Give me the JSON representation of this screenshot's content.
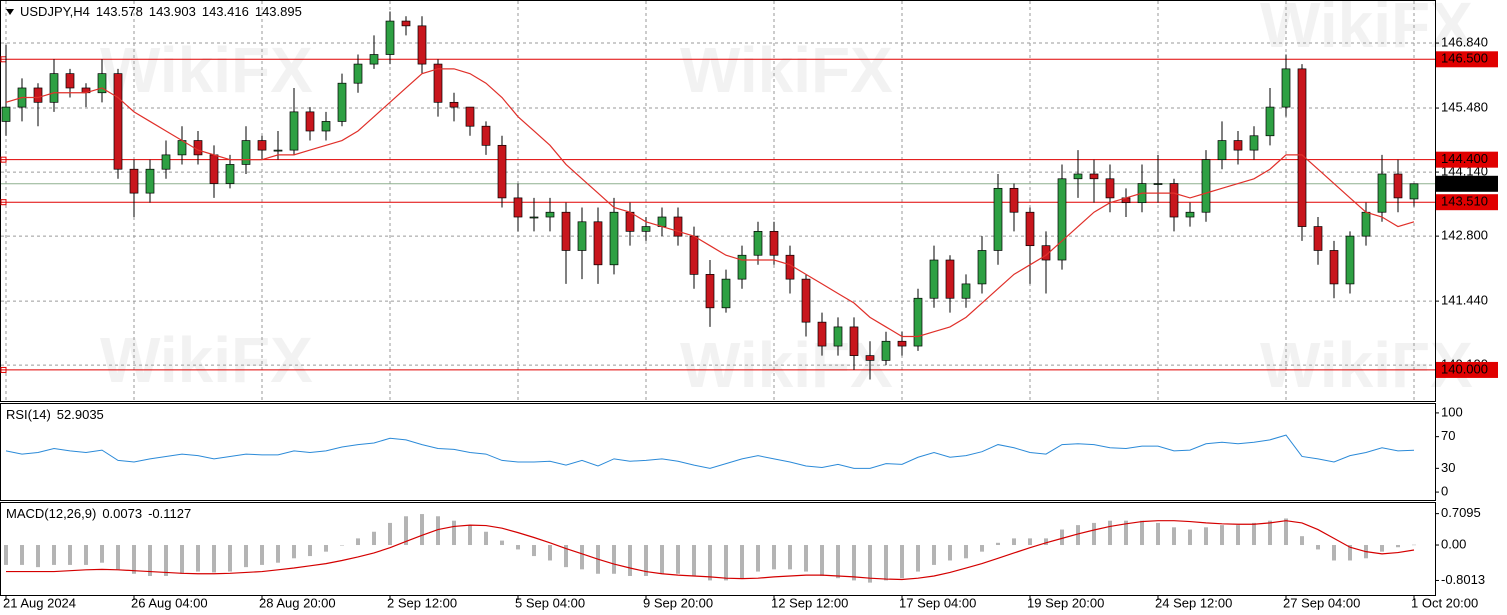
{
  "chart_data": [
    {
      "type": "candlestick",
      "title": "USDJPY,H4",
      "watermark": "WikiFX",
      "categories": [
        "21 Aug 2024",
        null,
        null,
        null,
        null,
        null,
        null,
        null,
        "26 Aug 04:00",
        null,
        null,
        null,
        null,
        null,
        null,
        null,
        "28 Aug 20:00",
        null,
        null,
        null,
        null,
        null,
        null,
        null,
        "2 Sep 12:00",
        null,
        null,
        null,
        null,
        null,
        null,
        null,
        "5 Sep 04:00",
        null,
        null,
        null,
        null,
        null,
        null,
        null,
        "9 Sep 20:00",
        null,
        null,
        null,
        null,
        null,
        null,
        null,
        "12 Sep 12:00",
        null,
        null,
        null,
        null,
        null,
        null,
        null,
        "17 Sep 04:00",
        null,
        null,
        null,
        null,
        null,
        null,
        null,
        "19 Sep 20:00",
        null,
        null,
        null,
        null,
        null,
        null,
        null,
        "24 Sep 12:00",
        null,
        null,
        null,
        null,
        null,
        null,
        null,
        "27 Sep 04:00",
        null,
        null,
        null,
        null,
        null,
        null,
        null,
        "1 Oct 20:00"
      ],
      "open": [
        145.2,
        145.5,
        145.9,
        145.6,
        146.2,
        145.9,
        145.8,
        146.2,
        144.2,
        143.7,
        144.2,
        144.5,
        144.8,
        144.5,
        143.9,
        144.3,
        144.8,
        144.6,
        144.6,
        145.4,
        145.0,
        145.2,
        146.0,
        146.4,
        146.6,
        147.3,
        147.2,
        146.4,
        145.6,
        145.5,
        145.1,
        144.7,
        143.6,
        143.2,
        143.2,
        143.3,
        142.5,
        143.1,
        142.2,
        143.3,
        142.9,
        143.0,
        143.2,
        142.8,
        142.0,
        141.3,
        141.9,
        142.4,
        142.9,
        142.4,
        141.9,
        141.0,
        140.5,
        140.9,
        140.3,
        140.2,
        140.6,
        140.5,
        141.5,
        142.3,
        141.5,
        141.8,
        142.5,
        143.8,
        143.3,
        142.6,
        142.3,
        144.0,
        144.1,
        144.0,
        143.6,
        143.5,
        143.9,
        143.9,
        143.2,
        143.3,
        144.4,
        144.8,
        144.6,
        144.9,
        145.5,
        146.3,
        143.0,
        142.5,
        141.8,
        142.8,
        143.3,
        144.1,
        143.578
      ],
      "high": [
        146.8,
        146.1,
        146.0,
        146.5,
        146.3,
        146.0,
        146.5,
        146.3,
        144.4,
        144.4,
        144.8,
        145.1,
        145.0,
        144.7,
        144.5,
        145.1,
        144.9,
        145.0,
        145.9,
        145.5,
        145.4,
        146.2,
        146.6,
        147.0,
        147.5,
        147.4,
        147.4,
        146.5,
        145.8,
        145.5,
        145.2,
        144.9,
        143.9,
        143.6,
        143.6,
        143.5,
        143.4,
        143.4,
        143.6,
        143.5,
        143.2,
        143.4,
        143.4,
        143.0,
        142.3,
        142.1,
        142.6,
        143.1,
        143.1,
        142.6,
        142.0,
        141.2,
        141.1,
        141.1,
        140.6,
        140.8,
        140.8,
        141.7,
        142.6,
        142.4,
        142.0,
        142.8,
        144.1,
        143.9,
        143.4,
        142.9,
        144.3,
        144.6,
        144.4,
        144.3,
        143.8,
        144.3,
        144.5,
        144.0,
        143.5,
        144.6,
        145.2,
        145.0,
        145.1,
        145.9,
        146.6,
        146.4,
        143.2,
        142.7,
        142.9,
        143.5,
        144.5,
        144.4,
        143.903
      ],
      "low": [
        144.9,
        145.2,
        145.1,
        145.4,
        145.7,
        145.5,
        145.6,
        144.0,
        143.2,
        143.5,
        144.0,
        144.3,
        144.3,
        143.6,
        143.8,
        144.1,
        144.4,
        144.4,
        144.5,
        144.8,
        144.8,
        145.1,
        145.8,
        146.3,
        146.4,
        147.0,
        146.2,
        145.3,
        145.2,
        144.9,
        144.5,
        143.4,
        142.9,
        142.9,
        142.9,
        141.8,
        141.9,
        141.8,
        142.0,
        142.6,
        142.7,
        142.8,
        142.6,
        141.7,
        140.9,
        141.2,
        141.7,
        142.2,
        142.2,
        141.6,
        140.7,
        140.3,
        140.3,
        140.0,
        139.8,
        140.1,
        140.3,
        140.4,
        141.3,
        141.2,
        141.3,
        141.6,
        142.2,
        142.9,
        141.8,
        141.6,
        142.1,
        143.6,
        143.5,
        143.3,
        143.2,
        143.3,
        143.5,
        142.9,
        143.0,
        143.1,
        144.2,
        144.3,
        144.4,
        144.7,
        145.3,
        142.7,
        142.2,
        141.5,
        141.6,
        142.6,
        143.1,
        143.3,
        143.416
      ],
      "close": [
        145.5,
        145.9,
        145.6,
        146.2,
        145.9,
        145.8,
        146.2,
        144.2,
        143.7,
        144.2,
        144.5,
        144.8,
        144.5,
        143.9,
        144.3,
        144.8,
        144.6,
        144.6,
        145.4,
        145.0,
        145.2,
        146.0,
        146.4,
        146.6,
        147.3,
        147.2,
        146.4,
        145.6,
        145.5,
        145.1,
        144.7,
        143.6,
        143.2,
        143.2,
        143.3,
        142.5,
        143.1,
        142.2,
        143.3,
        142.9,
        143.0,
        143.2,
        142.8,
        142.0,
        141.3,
        141.9,
        142.4,
        142.9,
        142.4,
        141.9,
        141.0,
        140.5,
        140.9,
        140.3,
        140.2,
        140.6,
        140.5,
        141.5,
        142.3,
        141.5,
        141.8,
        142.5,
        143.8,
        143.3,
        142.6,
        142.3,
        144.0,
        144.1,
        144.0,
        143.6,
        143.5,
        143.9,
        143.9,
        143.2,
        143.3,
        144.4,
        144.8,
        144.6,
        144.9,
        145.5,
        146.3,
        143.0,
        142.5,
        141.8,
        142.8,
        143.3,
        144.1,
        143.6,
        143.895
      ],
      "ma": [
        145.6,
        145.7,
        145.7,
        145.8,
        145.8,
        145.8,
        145.9,
        145.7,
        145.4,
        145.2,
        145.0,
        144.8,
        144.6,
        144.5,
        144.4,
        144.4,
        144.4,
        144.5,
        144.5,
        144.6,
        144.7,
        144.8,
        145.0,
        145.3,
        145.6,
        145.9,
        146.2,
        146.3,
        146.3,
        146.2,
        146.0,
        145.7,
        145.3,
        145.0,
        144.7,
        144.3,
        144.0,
        143.7,
        143.4,
        143.3,
        143.1,
        143.0,
        142.9,
        142.8,
        142.6,
        142.4,
        142.3,
        142.3,
        142.3,
        142.2,
        142.0,
        141.8,
        141.6,
        141.4,
        141.1,
        140.9,
        140.7,
        140.7,
        140.8,
        140.9,
        141.1,
        141.4,
        141.7,
        142.0,
        142.2,
        142.4,
        142.7,
        143.0,
        143.3,
        143.5,
        143.6,
        143.7,
        143.7,
        143.7,
        143.6,
        143.7,
        143.8,
        143.9,
        144.0,
        144.2,
        144.5,
        144.5,
        144.2,
        143.9,
        143.6,
        143.3,
        143.2,
        143.0,
        143.1
      ],
      "up_color": "#2ea043",
      "down_color": "#c8161d",
      "ma_color": "#e0302a",
      "ylim": [
        139.35,
        147.72
      ],
      "yticks": [
        {
          "value": 146.84,
          "label": "146.840"
        },
        {
          "value": 145.48,
          "label": "145.480"
        },
        {
          "value": 144.14,
          "label": "144.140"
        },
        {
          "value": 142.8,
          "label": "142.800"
        },
        {
          "value": 141.44,
          "label": "141.440"
        },
        {
          "value": 140.1,
          "label": "140.100"
        }
      ],
      "levels": [
        {
          "value": 146.5,
          "label": "146.500"
        },
        {
          "value": 144.4,
          "label": "144.400"
        },
        {
          "value": 143.51,
          "label": "143.510"
        },
        {
          "value": 140.0,
          "label": "140.000"
        }
      ],
      "level_color": "#e00000",
      "grid": true
    },
    {
      "type": "line",
      "title": "RSI(14)",
      "color": "#2b8ad8",
      "ylim": [
        -10,
        110
      ],
      "yticks": [
        100,
        70,
        30,
        0
      ],
      "values": [
        52,
        48,
        50,
        55,
        52,
        50,
        53,
        40,
        38,
        42,
        45,
        48,
        46,
        42,
        45,
        48,
        47,
        47,
        52,
        50,
        52,
        57,
        60,
        62,
        68,
        66,
        60,
        55,
        54,
        50,
        48,
        40,
        38,
        38,
        39,
        34,
        40,
        33,
        42,
        39,
        40,
        42,
        39,
        34,
        30,
        36,
        42,
        46,
        42,
        38,
        33,
        31,
        35,
        30,
        30,
        36,
        35,
        44,
        50,
        44,
        46,
        51,
        60,
        56,
        50,
        48,
        60,
        61,
        60,
        56,
        55,
        58,
        58,
        52,
        53,
        61,
        63,
        61,
        63,
        66,
        72,
        45,
        42,
        38,
        46,
        50,
        56,
        52,
        52.9035
      ]
    },
    {
      "type": "macd",
      "title": "MACD(12,26,9)",
      "hist_color": "#b4b4b4",
      "signal_color": "#d40000",
      "ylim": [
        -1.13,
        0.95
      ],
      "yticks": [
        0.7095,
        {
          "value": 0,
          "label": "0.00"
        },
        -0.8013
      ],
      "histogram": [
        -0.45,
        -0.45,
        -0.5,
        -0.45,
        -0.45,
        -0.45,
        -0.4,
        -0.55,
        -0.65,
        -0.7,
        -0.7,
        -0.65,
        -0.6,
        -0.62,
        -0.6,
        -0.5,
        -0.45,
        -0.4,
        -0.3,
        -0.25,
        -0.15,
        0.0,
        0.15,
        0.3,
        0.5,
        0.65,
        0.7,
        0.65,
        0.55,
        0.45,
        0.3,
        0.1,
        -0.1,
        -0.25,
        -0.35,
        -0.5,
        -0.55,
        -0.65,
        -0.65,
        -0.7,
        -0.7,
        -0.65,
        -0.65,
        -0.7,
        -0.8,
        -0.8,
        -0.75,
        -0.6,
        -0.55,
        -0.55,
        -0.6,
        -0.7,
        -0.75,
        -0.8,
        -0.85,
        -0.8,
        -0.75,
        -0.6,
        -0.45,
        -0.35,
        -0.3,
        -0.15,
        0.05,
        0.15,
        0.15,
        0.15,
        0.35,
        0.45,
        0.5,
        0.55,
        0.55,
        0.55,
        0.5,
        0.4,
        0.35,
        0.4,
        0.45,
        0.45,
        0.5,
        0.55,
        0.6,
        0.2,
        -0.1,
        -0.35,
        -0.35,
        -0.3,
        -0.15,
        -0.05,
        0.0073
      ],
      "signal": [
        -0.6,
        -0.6,
        -0.6,
        -0.6,
        -0.58,
        -0.56,
        -0.55,
        -0.56,
        -0.58,
        -0.6,
        -0.62,
        -0.64,
        -0.65,
        -0.65,
        -0.64,
        -0.62,
        -0.6,
        -0.56,
        -0.52,
        -0.47,
        -0.42,
        -0.35,
        -0.27,
        -0.18,
        -0.06,
        0.08,
        0.22,
        0.35,
        0.42,
        0.45,
        0.44,
        0.38,
        0.28,
        0.17,
        0.05,
        -0.08,
        -0.2,
        -0.32,
        -0.43,
        -0.52,
        -0.6,
        -0.65,
        -0.68,
        -0.7,
        -0.72,
        -0.75,
        -0.76,
        -0.75,
        -0.72,
        -0.7,
        -0.68,
        -0.68,
        -0.7,
        -0.72,
        -0.75,
        -0.77,
        -0.78,
        -0.75,
        -0.7,
        -0.62,
        -0.52,
        -0.42,
        -0.3,
        -0.18,
        -0.06,
        0.05,
        0.15,
        0.25,
        0.34,
        0.42,
        0.48,
        0.53,
        0.55,
        0.55,
        0.53,
        0.5,
        0.48,
        0.47,
        0.47,
        0.5,
        0.55,
        0.5,
        0.35,
        0.15,
        -0.05,
        -0.15,
        -0.2,
        -0.17,
        -0.1127
      ]
    }
  ]
}
